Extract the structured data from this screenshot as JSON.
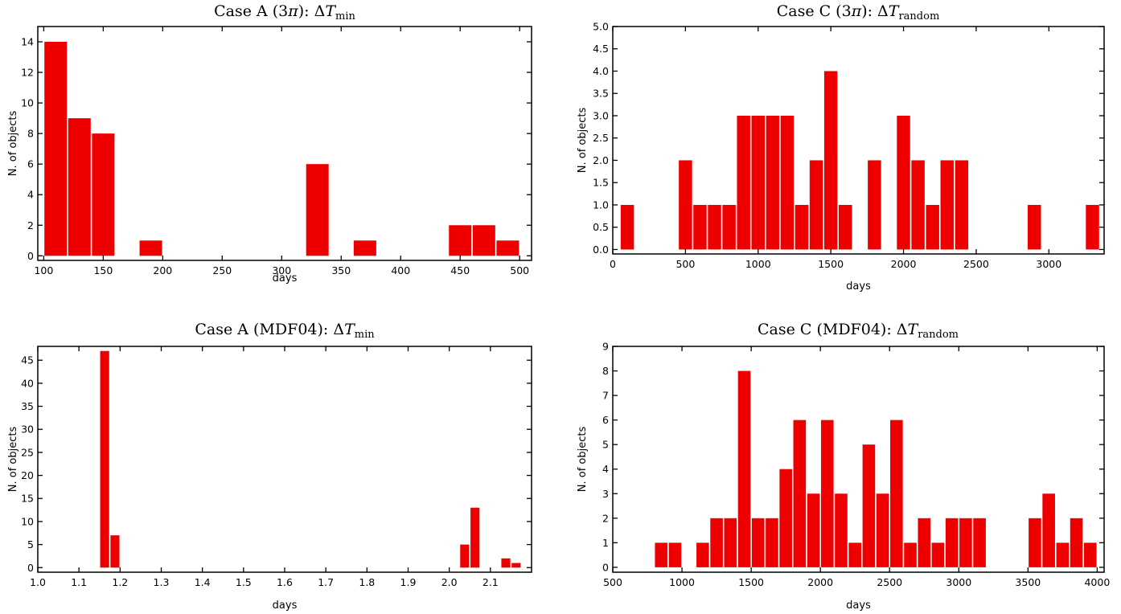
{
  "colors": {
    "bar": "#ee0000",
    "axis": "#000000",
    "background": "#ffffff"
  },
  "chart_data": [
    {
      "type": "bar",
      "title_main": "Case A (3",
      "title_pi": "π",
      "title_mid": "): Δ",
      "title_var": "T",
      "title_sub": "min",
      "xlabel": "days",
      "ylabel": "N. of objects",
      "xlim": [
        95,
        510
      ],
      "ylim": [
        -0.3,
        15
      ],
      "xticks": [
        100,
        150,
        200,
        250,
        300,
        350,
        400,
        450,
        500
      ],
      "xtick_labels": [
        "100",
        "150",
        "200",
        "250",
        "300",
        "350",
        "400",
        "450",
        "500"
      ],
      "yticks": [
        0,
        2,
        4,
        6,
        8,
        10,
        12,
        14
      ],
      "ytick_labels": [
        "0",
        "2",
        "4",
        "6",
        "8",
        "10",
        "12",
        "14"
      ],
      "bin_width": 20,
      "bins_left": [
        100,
        120,
        140,
        180,
        320,
        360,
        440,
        460,
        480
      ],
      "values": [
        14,
        9,
        8,
        1,
        6,
        1,
        2,
        2,
        1
      ]
    },
    {
      "type": "bar",
      "title_main": "Case C (3",
      "title_pi": "π",
      "title_mid": "): Δ",
      "title_var": "T",
      "title_sub": "random",
      "xlabel": "days",
      "ylabel": "N. of objects",
      "xlim": [
        0,
        3380
      ],
      "ylim": [
        -0.1,
        5.0
      ],
      "xticks": [
        0,
        500,
        1000,
        1500,
        2000,
        2500,
        3000
      ],
      "xtick_labels": [
        "0",
        "500",
        "1000",
        "1500",
        "2000",
        "2500",
        "3000"
      ],
      "yticks": [
        0.0,
        0.5,
        1.0,
        1.5,
        2.0,
        2.5,
        3.0,
        3.5,
        4.0,
        4.5,
        5.0
      ],
      "ytick_labels": [
        "0.0",
        "0.5",
        "1.0",
        "1.5",
        "2.0",
        "2.5",
        "3.0",
        "3.5",
        "4.0",
        "4.5",
        "5.0"
      ],
      "bin_width": 100,
      "bins_left": [
        50,
        450,
        550,
        650,
        750,
        850,
        950,
        1050,
        1150,
        1250,
        1350,
        1450,
        1550,
        1750,
        1950,
        2050,
        2150,
        2250,
        2350,
        2850,
        3250
      ],
      "values": [
        1,
        2,
        1,
        1,
        1,
        3,
        3,
        3,
        3,
        1,
        2,
        4,
        1,
        2,
        3,
        2,
        1,
        2,
        2,
        1,
        1
      ]
    },
    {
      "type": "bar",
      "title_main": "Case A (MDF04): Δ",
      "title_pi": "",
      "title_mid": "",
      "title_var": "T",
      "title_sub": "min",
      "xlabel": "days",
      "ylabel": "N. of objects",
      "xlim": [
        1.0,
        2.2
      ],
      "ylim": [
        -1,
        48
      ],
      "xticks": [
        1.0,
        1.1,
        1.2,
        1.3,
        1.4,
        1.5,
        1.6,
        1.7,
        1.8,
        1.9,
        2.0,
        2.1
      ],
      "xtick_labels": [
        "1.0",
        "1.1",
        "1.2",
        "1.3",
        "1.4",
        "1.5",
        "1.6",
        "1.7",
        "1.8",
        "1.9",
        "2.0",
        "2.1"
      ],
      "yticks": [
        0,
        5,
        10,
        15,
        20,
        25,
        30,
        35,
        40,
        45
      ],
      "ytick_labels": [
        "0",
        "5",
        "10",
        "15",
        "20",
        "25",
        "30",
        "35",
        "40",
        "45"
      ],
      "bin_width": 0.025,
      "bins_left": [
        1.15,
        1.175,
        2.025,
        2.05,
        2.125,
        2.15
      ],
      "values": [
        47,
        7,
        5,
        13,
        2,
        1
      ]
    },
    {
      "type": "bar",
      "title_main": "Case C (MDF04): Δ",
      "title_pi": "",
      "title_mid": "",
      "title_var": "T",
      "title_sub": "random",
      "xlabel": "days",
      "ylabel": "N. of objects",
      "xlim": [
        500,
        4050
      ],
      "ylim": [
        -0.2,
        9
      ],
      "xticks": [
        500,
        1000,
        1500,
        2000,
        2500,
        3000,
        3500,
        4000
      ],
      "xtick_labels": [
        "500",
        "1000",
        "1500",
        "2000",
        "2500",
        "3000",
        "3500",
        "4000"
      ],
      "yticks": [
        0,
        1,
        2,
        3,
        4,
        5,
        6,
        7,
        8,
        9
      ],
      "ytick_labels": [
        "0",
        "1",
        "2",
        "3",
        "4",
        "5",
        "6",
        "7",
        "8",
        "9"
      ],
      "bin_width": 100,
      "bins_left": [
        800,
        900,
        1100,
        1200,
        1300,
        1400,
        1500,
        1600,
        1700,
        1800,
        1900,
        2000,
        2100,
        2200,
        2300,
        2400,
        2500,
        2600,
        2700,
        2800,
        2900,
        3000,
        3100,
        3500,
        3600,
        3700,
        3800,
        3900
      ],
      "values": [
        1,
        1,
        1,
        2,
        2,
        8,
        2,
        2,
        4,
        6,
        3,
        6,
        3,
        1,
        5,
        3,
        6,
        1,
        2,
        1,
        2,
        2,
        2,
        2,
        3,
        1,
        2,
        1
      ]
    }
  ]
}
